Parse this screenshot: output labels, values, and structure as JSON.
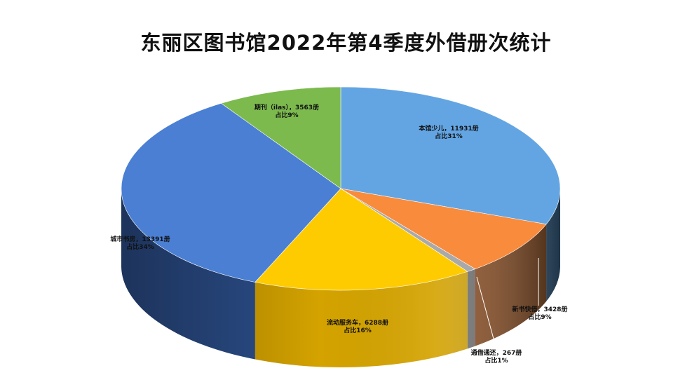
{
  "chart_data": {
    "type": "pie",
    "title": "东丽区图书馆2022年第4季度外借册次统计",
    "slices": [
      {
        "name": "本馆少儿",
        "value": 11931,
        "value_text": "11931册",
        "percent_text": "占比31%",
        "color": "#63A5E3",
        "side_color": "#3F6F99"
      },
      {
        "name": "新书快借",
        "value": 3428,
        "value_text": "3428册",
        "percent_text": "占比9%",
        "color": "#F98B3C",
        "side_color": "#8A4A1C"
      },
      {
        "name": "通借通还",
        "value": 267,
        "value_text": "267册",
        "percent_text": "占比1%",
        "color": "#A9A9A9",
        "side_color": "#6E6E6E"
      },
      {
        "name": "流动服务车",
        "value": 6288,
        "value_text": "6288册",
        "percent_text": "占比16%",
        "color": "#FECB00",
        "side_color": "#D4A300"
      },
      {
        "name": "城市书房",
        "value": 13391,
        "value_text": "13391册",
        "percent_text": "占比34%",
        "color": "#4A7FD3",
        "side_color": "#2C4F8C"
      },
      {
        "name": "期刊（ilas）",
        "value": 3563,
        "value_text": "3563册",
        "percent_text": "占比9%",
        "color": "#7CBA4E",
        "side_color": "#4E7A30"
      }
    ]
  }
}
